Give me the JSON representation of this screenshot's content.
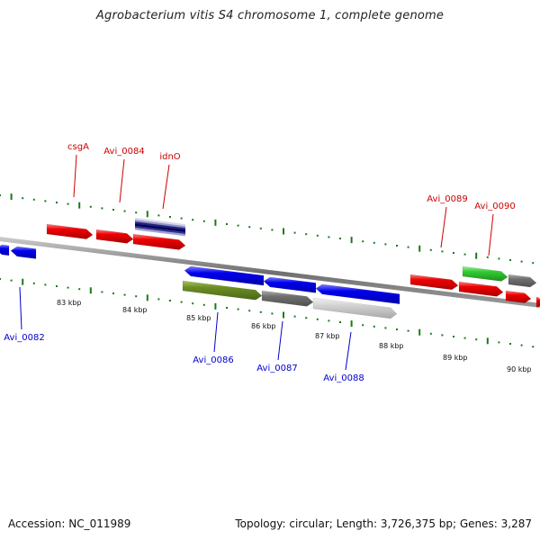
{
  "title": "Agrobacterium vitis S4 chromosome 1, complete genome",
  "footer": {
    "accession": "Accession: NC_011989",
    "summary": "Topology: circular; Length: 3,726,375 bp; Genes: 3,287"
  },
  "colors": {
    "forward_label": "#cc0000",
    "reverse_label": "#0000cc",
    "tick": "#1a7a1a",
    "backbone": "#808080"
  },
  "scale_labels": [
    "83 kbp",
    "84 kbp",
    "85 kbp",
    "86 kbp",
    "87 kbp",
    "88 kbp",
    "89 kbp",
    "90 kbp"
  ],
  "forward_genes": [
    {
      "label": "csgA",
      "color": "red"
    },
    {
      "label": "Avi_0084",
      "color": "red"
    },
    {
      "label": "idnO",
      "color": "navy"
    },
    {
      "label": "Avi_0089",
      "color": "red"
    },
    {
      "label": "Avi_0090",
      "color": "green"
    }
  ],
  "reverse_genes": [
    {
      "label": "Avi_0082",
      "color": "blue"
    },
    {
      "label": "Avi_0086",
      "color": "olive"
    },
    {
      "label": "Avi_0087",
      "color": "darkgray"
    },
    {
      "label": "Avi_0088",
      "color": "lightgray"
    }
  ]
}
